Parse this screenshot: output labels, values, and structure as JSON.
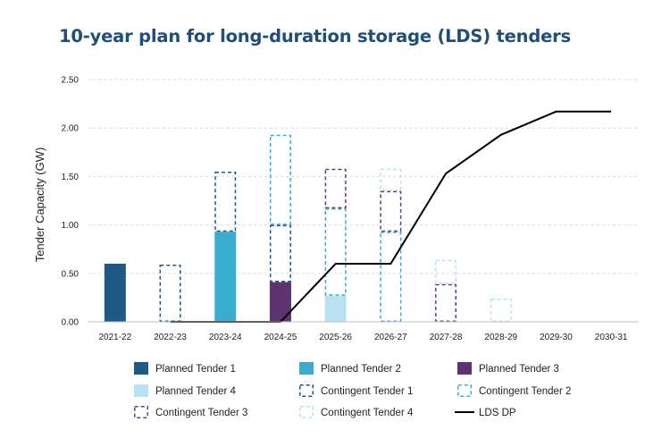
{
  "chart_data": {
    "type": "bar",
    "title": "10-year plan for long-duration storage (LDS) tenders",
    "ylabel": "Tender Capacity (GW)",
    "xlabel": "",
    "ylim": [
      0,
      2.5
    ],
    "yticks": [
      "0.00",
      "0.50",
      "1.00",
      "1.50",
      "2.00",
      "2.50"
    ],
    "grid": "horizontal dashed",
    "legend_position": "bottom",
    "stacked": true,
    "categories": [
      "2021-22",
      "2022-23",
      "2023-24",
      "2024-25",
      "2025-26",
      "2026-27",
      "2027-28",
      "2028-29",
      "2029-30",
      "2030-31"
    ],
    "series": [
      {
        "name": "Planned Tender 1",
        "style": "solid",
        "color": "#1f5a84",
        "values": [
          0.6,
          0,
          0,
          0,
          0,
          0,
          0,
          0,
          0,
          0
        ]
      },
      {
        "name": "Planned Tender 2",
        "style": "solid",
        "color": "#3aaccf",
        "values": [
          0,
          0,
          0.93,
          0,
          0,
          0,
          0,
          0,
          0,
          0
        ]
      },
      {
        "name": "Planned Tender 3",
        "style": "solid",
        "color": "#5d3372",
        "values": [
          0,
          0,
          0,
          0.41,
          0,
          0,
          0,
          0,
          0,
          0
        ]
      },
      {
        "name": "Planned Tender 4",
        "style": "solid",
        "color": "#b9e1f1",
        "values": [
          0,
          0,
          0,
          0,
          0.27,
          0,
          0,
          0,
          0,
          0
        ]
      },
      {
        "name": "Contingent Tender 1",
        "style": "dashed",
        "color": "#1f5a84",
        "values": [
          0,
          0.59,
          0.62,
          0.59,
          0,
          0,
          0,
          0,
          0,
          0
        ]
      },
      {
        "name": "Contingent Tender 2",
        "style": "dashed",
        "color": "#3aaccf",
        "values": [
          0,
          0,
          0,
          0.93,
          0.9,
          0.93,
          0,
          0,
          0,
          0
        ]
      },
      {
        "name": "Contingent Tender 3",
        "style": "dashed",
        "color": "#6b3b82",
        "values": [
          0,
          0,
          0,
          0,
          0.41,
          0.42,
          0.39,
          0,
          0,
          0
        ]
      },
      {
        "name": "Contingent Tender 4",
        "style": "dashed",
        "color": "#b9e1f1",
        "values": [
          0,
          0,
          0,
          0,
          0,
          0.23,
          0.25,
          0.24,
          0,
          0
        ]
      },
      {
        "name": "LDS DP",
        "style": "line",
        "color": "#000000",
        "values": [
          null,
          0.0,
          0.0,
          0.0,
          0.6,
          0.6,
          1.53,
          1.93,
          2.17,
          2.17
        ]
      }
    ]
  }
}
